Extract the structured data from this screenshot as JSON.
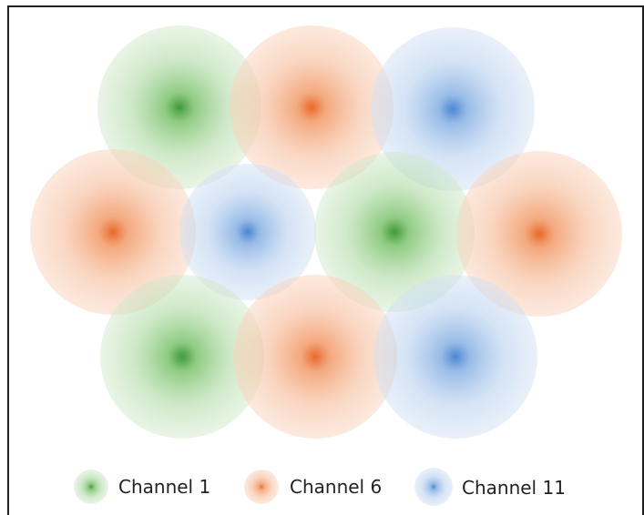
{
  "colors": {
    "channel_1": "#6fbf5f",
    "channel_6": "#f08a4b",
    "channel_11": "#6fa3dc"
  },
  "cells": [
    {
      "channel": "channel_1"
    },
    {
      "channel": "channel_6"
    },
    {
      "channel": "channel_11"
    },
    {
      "channel": "channel_6"
    },
    {
      "channel": "channel_11"
    },
    {
      "channel": "channel_1"
    },
    {
      "channel": "channel_6"
    },
    {
      "channel": "channel_1"
    },
    {
      "channel": "channel_6"
    },
    {
      "channel": "channel_11"
    }
  ],
  "legend": [
    {
      "label": "Channel 1",
      "channel": "channel_1"
    },
    {
      "label": "Channel 6",
      "channel": "channel_6"
    },
    {
      "label": "Channel 11",
      "channel": "channel_11"
    }
  ]
}
